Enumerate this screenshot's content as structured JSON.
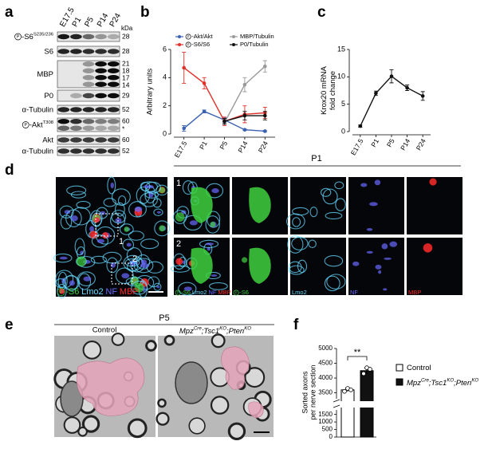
{
  "panel_a": {
    "letter": "a",
    "lanes": [
      "E17.5",
      "P1",
      "P5",
      "P14",
      "P24"
    ],
    "unit": "kDa",
    "rows": [
      {
        "phospho": "P",
        "label": "-S6",
        "sup": "S235/236",
        "kda": [
          "28"
        ]
      },
      {
        "label": "S6",
        "kda": [
          "28"
        ]
      },
      {
        "label": "MBP",
        "kda": [
          "21",
          "18",
          "17",
          "14"
        ]
      },
      {
        "label": "P0",
        "kda": [
          "29"
        ]
      },
      {
        "label": "α-Tubulin",
        "kda": [
          "52"
        ]
      },
      {
        "phospho": "P",
        "label": "-Akt",
        "sup": "T308",
        "kda": [
          "60",
          "*"
        ]
      },
      {
        "label": "Akt",
        "kda": [
          "60"
        ]
      },
      {
        "label": "α-Tubulin",
        "kda": [
          "52"
        ]
      }
    ]
  },
  "panel_b": {
    "letter": "b",
    "chart": {
      "type": "line",
      "ylabel": [
        "Arbitrary units"
      ],
      "categories": [
        "E17.5",
        "P1",
        "P5",
        "P14",
        "P24"
      ],
      "ylim": [
        0,
        6
      ],
      "yticks": [
        0,
        2,
        4,
        6
      ],
      "series": [
        {
          "phospho": "P",
          "name": "-Akt/Akt",
          "color": "#3a62b0",
          "values": [
            0.4,
            1.6,
            1.0,
            0.3,
            0.2
          ],
          "errors": [
            0.2,
            0.1,
            0.15,
            0.05,
            0.05
          ]
        },
        {
          "phospho": "P",
          "name": "-S6/S6",
          "color": "#e0312a",
          "values": [
            4.7,
            3.6,
            0.9,
            1.4,
            1.5
          ],
          "errors": [
            1.1,
            0.4,
            0.3,
            0.6,
            0.4
          ]
        },
        {
          "name": "MBP/Tubulin",
          "color": "#9a9a9a",
          "values": [
            null,
            null,
            0.8,
            3.5,
            4.8
          ],
          "errors": [
            null,
            null,
            0.1,
            0.5,
            0.4
          ]
        },
        {
          "name": "P0/Tubulin",
          "color": "#111111",
          "values": [
            null,
            null,
            0.9,
            1.3,
            1.3
          ],
          "errors": [
            null,
            null,
            0.2,
            0.3,
            0.3
          ]
        }
      ]
    }
  },
  "panel_c": {
    "letter": "c",
    "chart": {
      "type": "line",
      "ylabel": [
        "Krox20 mRNA",
        "fold change"
      ],
      "categories": [
        "E17.5",
        "P1",
        "P5",
        "P14",
        "P24"
      ],
      "color": "#111111",
      "values": [
        1.0,
        7.0,
        10.1,
        8.0,
        6.5
      ],
      "errors": [
        0.2,
        0.4,
        1.2,
        0.5,
        0.8
      ],
      "ylim": [
        0,
        15
      ],
      "yticks": [
        0,
        5,
        10,
        15
      ]
    }
  },
  "panel_d": {
    "letter": "d",
    "title": "P1",
    "insets": [
      "1",
      "2"
    ],
    "legend": [
      {
        "phospho": "P",
        "text": "-S6",
        "color": "#3fd23f"
      },
      {
        "text": "Lmo2",
        "color": "#66d9ff"
      },
      {
        "text": "NF",
        "color": "#6a6aff"
      },
      {
        "text": "MBP",
        "color": "#ff2a2a"
      }
    ]
  },
  "panel_e": {
    "letter": "e",
    "title": "P5",
    "control": "Control",
    "mutant": [
      {
        "text": "Mpz"
      },
      {
        "text": "Cre",
        "sup": true
      },
      {
        "text": ";Tsc1"
      },
      {
        "text": "KO",
        "sup": true
      },
      {
        "text": ";Pten"
      },
      {
        "text": "KO",
        "sup": true
      }
    ]
  },
  "panel_f": {
    "letter": "f",
    "chart": {
      "type": "bar",
      "ylabel": [
        "Sorted axons",
        "per nerve section"
      ],
      "values": [
        3600,
        4250
      ],
      "errors": [
        60,
        90
      ],
      "points": [
        [
          3550,
          3650,
          3600
        ],
        [
          4150,
          4350,
          4300
        ]
      ],
      "colors": [
        "#ffffff",
        "#111111"
      ],
      "ylim_upper": [
        3300,
        5000
      ],
      "yticks_upper": [
        3500,
        4000,
        4500,
        5000
      ],
      "ylim_lower": [
        0,
        1800
      ],
      "yticks_lower": [
        0,
        500,
        1000,
        1500
      ],
      "significance": "**"
    }
  }
}
